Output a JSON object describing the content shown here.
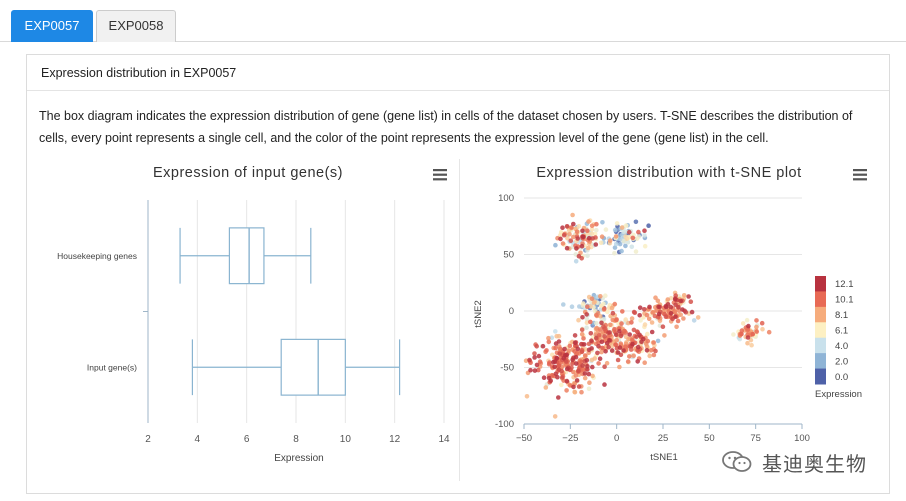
{
  "tabs": [
    {
      "label": "EXP0057",
      "active": true
    },
    {
      "label": "EXP0058",
      "active": false
    }
  ],
  "panel": {
    "title": "Expression distribution in  EXP0057",
    "description": "The box diagram indicates the expression distribution of gene (gene list) in cells of the dataset chosen by users. T-SNE describes the distribution of cells, every point represents a single cell, and the color of the point represents the expression level of the gene (gene list) in the cell."
  },
  "chart_data": [
    {
      "type": "box",
      "title": "Expression of input gene(s)",
      "xlabel": "Expression",
      "ylabel": "",
      "xlim": [
        2,
        14
      ],
      "xticks": [
        2,
        4,
        6,
        8,
        10,
        12,
        14
      ],
      "grid": true,
      "orientation": "horizontal",
      "categories": [
        "Housekeeping genes",
        "Input gene(s)"
      ],
      "boxes": [
        {
          "name": "Housekeeping genes",
          "min": 3.3,
          "q1": 5.3,
          "median": 6.1,
          "q3": 6.7,
          "max": 8.6
        },
        {
          "name": "Input gene(s)",
          "min": 3.8,
          "q1": 7.4,
          "median": 8.9,
          "q3": 10.0,
          "max": 12.2
        }
      ],
      "color": "#8ab4d0"
    },
    {
      "type": "scatter",
      "title": "Expression distribution with t-SNE plot",
      "xlabel": "tSNE1",
      "ylabel": "tSNE2",
      "xlim": [
        -50,
        100
      ],
      "ylim": [
        -100,
        100
      ],
      "xticks": [
        -50,
        -25,
        0,
        25,
        50,
        75,
        100
      ],
      "yticks": [
        -100,
        -50,
        0,
        50,
        100
      ],
      "grid": true,
      "legend": {
        "title": "Expression",
        "placement": "right",
        "ticks": [
          "12.1",
          "10.1",
          "8.1",
          "6.1",
          "4.0",
          "2.0",
          "0.0"
        ],
        "colors": [
          "#b8323f",
          "#e86a55",
          "#f6ac7c",
          "#fdf0c3",
          "#c9e1ec",
          "#8fb4d6",
          "#4e61a8"
        ]
      },
      "clusters": [
        {
          "cx": -20,
          "cy": 65,
          "sx": 6,
          "sy": 8,
          "n": 110,
          "mean": 7.5,
          "sd": 3.2
        },
        {
          "cx": 5,
          "cy": 65,
          "sx": 6,
          "sy": 6,
          "n": 75,
          "mean": 3.5,
          "sd": 3.0
        },
        {
          "cx": -28,
          "cy": -45,
          "sx": 9,
          "sy": 12,
          "n": 230,
          "mean": 9.6,
          "sd": 2.2
        },
        {
          "cx": -5,
          "cy": -20,
          "sx": 7,
          "sy": 9,
          "n": 160,
          "mean": 7.8,
          "sd": 2.6
        },
        {
          "cx": 10,
          "cy": -30,
          "sx": 6,
          "sy": 7,
          "n": 90,
          "mean": 8.6,
          "sd": 2.4
        },
        {
          "cx": -10,
          "cy": 5,
          "sx": 5,
          "sy": 5,
          "n": 60,
          "mean": 4.6,
          "sd": 3.2
        },
        {
          "cx": 25,
          "cy": -2,
          "sx": 7,
          "sy": 5,
          "n": 100,
          "mean": 9.3,
          "sd": 2.0
        },
        {
          "cx": 35,
          "cy": 10,
          "sx": 3,
          "sy": 2.5,
          "n": 28,
          "mean": 8.0,
          "sd": 2.5
        },
        {
          "cx": 72,
          "cy": -20,
          "sx": 4,
          "sy": 4,
          "n": 55,
          "mean": 7.0,
          "sd": 3.0
        }
      ]
    }
  ],
  "watermark": {
    "text": "基迪奥生物"
  }
}
